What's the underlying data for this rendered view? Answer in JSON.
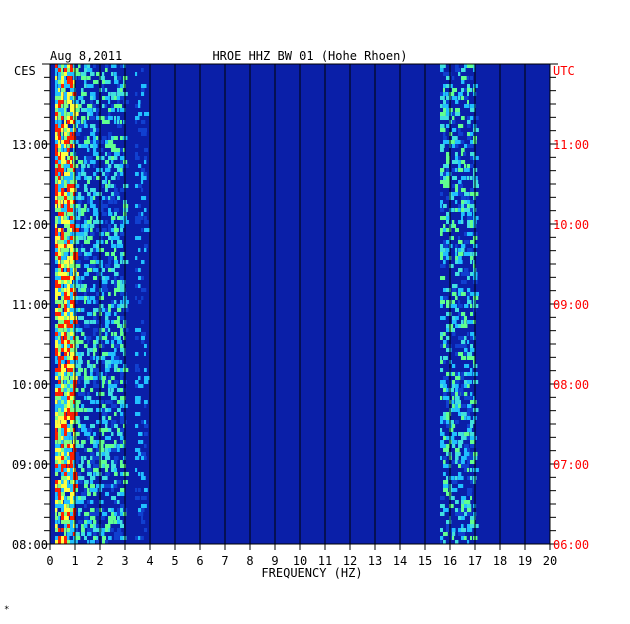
{
  "chart_data": {
    "type": "heatmap",
    "title": "HROE HHZ BW 01 (Hohe Rhoen)",
    "date": "Aug 8,2011",
    "xlabel": "FREQUENCY (HZ)",
    "x_range": [
      0,
      20
    ],
    "x_ticks": [
      "0",
      "1",
      "2",
      "3",
      "4",
      "5",
      "6",
      "7",
      "8",
      "9",
      "10",
      "11",
      "12",
      "13",
      "14",
      "15",
      "16",
      "17",
      "18",
      "19",
      "20"
    ],
    "left_axis": {
      "label": "CES",
      "ticks": [
        "13:00",
        "12:00",
        "11:00",
        "10:00",
        "09:00",
        "08:00"
      ],
      "range": [
        "08:00",
        "14:00"
      ]
    },
    "right_axis": {
      "label": "UTC",
      "ticks": [
        "11:00",
        "10:00",
        "09:00",
        "08:00",
        "07:00",
        "06:00"
      ],
      "range": [
        "06:00",
        "12:00"
      ],
      "color": "#ff0000"
    },
    "colors": {
      "background": "#0a1fa8",
      "grid": "#000000",
      "low": "#1040d0",
      "mid": "#20c0ff",
      "high": "#ffff40",
      "peak": "#ff2000"
    },
    "energy_bands_hz": [
      {
        "from": 0.2,
        "to": 1.0,
        "level": "high"
      },
      {
        "from": 1.0,
        "to": 3.0,
        "level": "mid"
      },
      {
        "from": 3.4,
        "to": 3.8,
        "level": "low"
      },
      {
        "from": 15.6,
        "to": 17.0,
        "level": "mid"
      }
    ],
    "footnote": "*"
  }
}
